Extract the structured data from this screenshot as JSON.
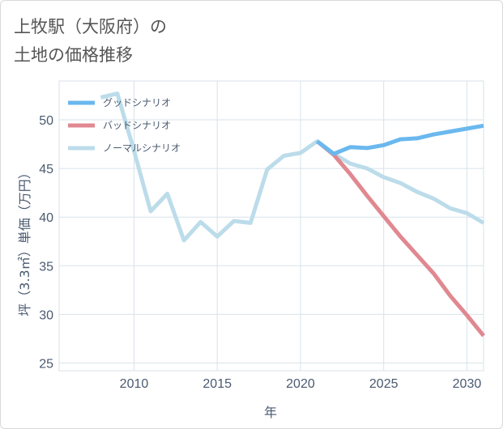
{
  "title_line1": "上牧駅（大阪府）の",
  "title_line2": "土地の価格推移",
  "colors": {
    "good": "#6ab8ee",
    "bad": "#e08890",
    "normal": "#bcdcea"
  },
  "chart_data": {
    "type": "line",
    "xlabel": "年",
    "ylabel": "坪（3.3㎡）単価（万円）",
    "xlim": [
      2005.5,
      2031
    ],
    "ylim": [
      24.2,
      54
    ],
    "xticks": [
      2010,
      2015,
      2020,
      2025,
      2030
    ],
    "yticks": [
      25,
      30,
      35,
      40,
      45,
      50
    ],
    "legend_position": "top-left",
    "series": [
      {
        "name": "グッドシナリオ",
        "key": "good",
        "x": [
          2021,
          2022,
          2023,
          2024,
          2025,
          2026,
          2027,
          2028,
          2029,
          2030,
          2031
        ],
        "y": [
          47.8,
          46.5,
          47.2,
          47.1,
          47.4,
          48.0,
          48.1,
          48.5,
          48.8,
          49.1,
          49.4
        ]
      },
      {
        "name": "バッドシナリオ",
        "key": "bad",
        "x": [
          2021,
          2022,
          2023,
          2024,
          2025,
          2026,
          2027,
          2028,
          2029,
          2030,
          2031
        ],
        "y": [
          47.8,
          46.4,
          44.4,
          42.2,
          40.1,
          38.0,
          36.1,
          34.2,
          31.9,
          29.9,
          27.8
        ]
      },
      {
        "name": "ノーマルシナリオ",
        "key": "normal",
        "x": [
          2008,
          2009,
          2010,
          2011,
          2012,
          2013,
          2014,
          2015,
          2016,
          2017,
          2018,
          2019,
          2020,
          2021,
          2022,
          2023,
          2024,
          2025,
          2026,
          2027,
          2028,
          2029,
          2030,
          2031
        ],
        "y": [
          52.3,
          52.7,
          46.8,
          40.6,
          42.4,
          37.6,
          39.5,
          38.0,
          39.6,
          39.4,
          44.9,
          46.3,
          46.6,
          47.8,
          46.5,
          45.5,
          45.0,
          44.1,
          43.5,
          42.6,
          41.9,
          40.9,
          40.4,
          39.4
        ]
      }
    ]
  }
}
